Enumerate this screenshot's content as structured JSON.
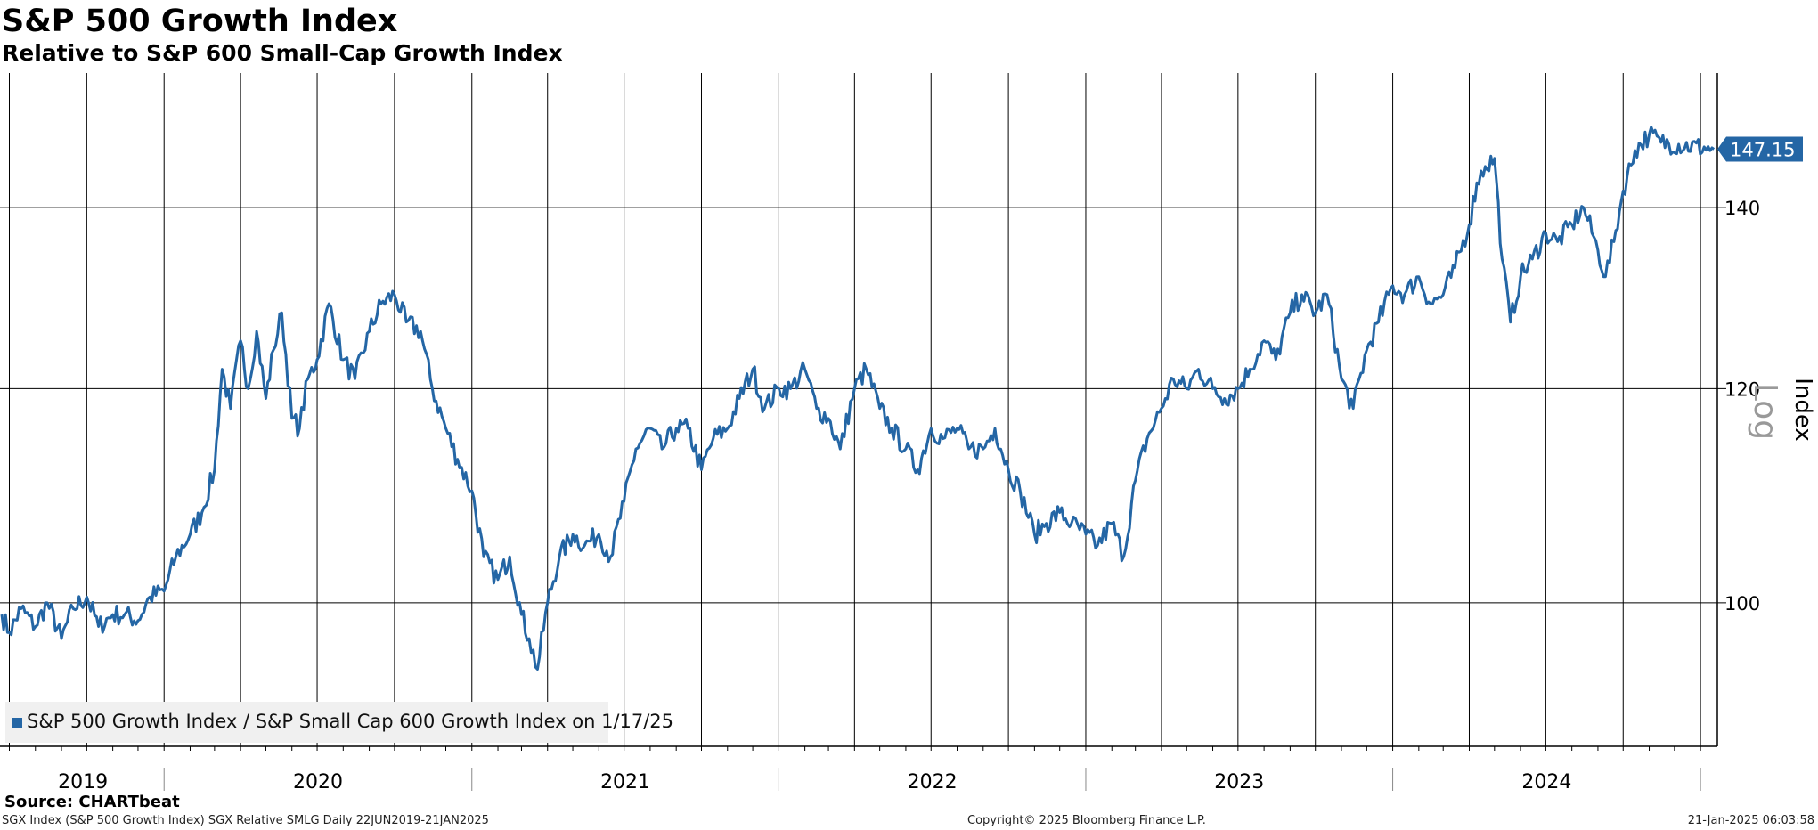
{
  "header": {
    "title": "S&P 500 Growth Index",
    "subtitle": "Relative to S&P 600 Small-Cap Growth Index"
  },
  "footer": {
    "source": "Source: CHARTbeat",
    "description": "SGX Index (S&P 500 Growth Index) SGX Relative SMLG  Daily 22JUN2019-21JAN2025",
    "copyright": "Copyright© 2025 Bloomberg Finance L.P.",
    "timestamp": "21-Jan-2025 06:03:58"
  },
  "colors": {
    "series": "#2466a5",
    "grid": "#000000",
    "legend_bg": "#f0f0f0",
    "scale_label": "#999999"
  },
  "chart_data": {
    "type": "line",
    "title": "S&P 500 Growth Index",
    "subtitle": "Relative to S&P 600 Small-Cap Growth Index",
    "ylabel": "Index",
    "scale_label": "Log",
    "y_scale": "log",
    "ylim": [
      88.5,
      157
    ],
    "xlim": [
      "2019-06-22",
      "2025-01-21"
    ],
    "y_ticks": [
      100,
      120,
      140
    ],
    "x_tick_labels": [
      "2019",
      "2020",
      "2021",
      "2022",
      "2023",
      "2024"
    ],
    "grid": true,
    "legend_position": "bottom-left",
    "last_value": 147.15,
    "last_value_label": "147.15",
    "series": [
      {
        "name": "S&P 500 Growth Index / S&P Small Cap 600 Growth Index on 1/17/25",
        "points": [
          [
            "2019-06-22",
            99
          ],
          [
            "2019-07-01",
            97.5
          ],
          [
            "2019-07-15",
            99.5
          ],
          [
            "2019-08-01",
            98
          ],
          [
            "2019-08-15",
            100
          ],
          [
            "2019-09-01",
            97
          ],
          [
            "2019-09-15",
            99.5
          ],
          [
            "2019-10-01",
            100.5
          ],
          [
            "2019-10-15",
            98
          ],
          [
            "2019-11-01",
            99
          ],
          [
            "2019-11-15",
            99
          ],
          [
            "2019-12-01",
            98.5
          ],
          [
            "2019-12-15",
            100.5
          ],
          [
            "2020-01-01",
            101
          ],
          [
            "2020-01-15",
            104
          ],
          [
            "2020-02-01",
            106
          ],
          [
            "2020-02-15",
            108
          ],
          [
            "2020-03-01",
            112
          ],
          [
            "2020-03-10",
            122
          ],
          [
            "2020-03-20",
            118
          ],
          [
            "2020-04-01",
            125
          ],
          [
            "2020-04-10",
            120
          ],
          [
            "2020-04-20",
            126
          ],
          [
            "2020-05-01",
            119
          ],
          [
            "2020-05-10",
            124
          ],
          [
            "2020-05-20",
            128
          ],
          [
            "2020-06-01",
            117
          ],
          [
            "2020-06-10",
            116
          ],
          [
            "2020-06-20",
            121
          ],
          [
            "2020-07-01",
            123
          ],
          [
            "2020-07-15",
            129
          ],
          [
            "2020-08-01",
            123
          ],
          [
            "2020-08-15",
            121
          ],
          [
            "2020-09-01",
            126
          ],
          [
            "2020-09-15",
            129
          ],
          [
            "2020-10-01",
            130
          ],
          [
            "2020-10-15",
            127
          ],
          [
            "2020-11-01",
            126
          ],
          [
            "2020-11-15",
            120
          ],
          [
            "2020-12-01",
            116
          ],
          [
            "2020-12-15",
            113
          ],
          [
            "2021-01-01",
            110
          ],
          [
            "2021-01-15",
            104
          ],
          [
            "2021-02-01",
            102
          ],
          [
            "2021-02-15",
            104
          ],
          [
            "2021-03-01",
            99
          ],
          [
            "2021-03-10",
            97
          ],
          [
            "2021-03-20",
            94.5
          ],
          [
            "2021-04-01",
            100
          ],
          [
            "2021-04-15",
            104
          ],
          [
            "2021-05-01",
            106
          ],
          [
            "2021-05-15",
            105
          ],
          [
            "2021-06-01",
            106
          ],
          [
            "2021-06-15",
            104
          ],
          [
            "2021-07-01",
            109
          ],
          [
            "2021-07-15",
            114
          ],
          [
            "2021-08-01",
            116
          ],
          [
            "2021-08-15",
            114
          ],
          [
            "2021-09-01",
            116
          ],
          [
            "2021-09-15",
            116
          ],
          [
            "2021-10-01",
            112
          ],
          [
            "2021-10-15",
            115
          ],
          [
            "2021-11-01",
            116
          ],
          [
            "2021-11-15",
            119
          ],
          [
            "2021-12-01",
            122
          ],
          [
            "2021-12-15",
            118
          ],
          [
            "2022-01-01",
            120
          ],
          [
            "2022-01-15",
            120
          ],
          [
            "2022-02-01",
            122
          ],
          [
            "2022-02-15",
            118
          ],
          [
            "2022-03-01",
            117
          ],
          [
            "2022-03-15",
            114
          ],
          [
            "2022-04-01",
            120
          ],
          [
            "2022-04-15",
            122
          ],
          [
            "2022-05-01",
            118
          ],
          [
            "2022-05-15",
            116
          ],
          [
            "2022-06-01",
            114
          ],
          [
            "2022-06-15",
            112
          ],
          [
            "2022-07-01",
            116
          ],
          [
            "2022-07-15",
            115
          ],
          [
            "2022-08-01",
            116
          ],
          [
            "2022-08-15",
            114
          ],
          [
            "2022-09-01",
            114
          ],
          [
            "2022-09-15",
            116
          ],
          [
            "2022-10-01",
            112
          ],
          [
            "2022-10-15",
            110
          ],
          [
            "2022-11-01",
            106
          ],
          [
            "2022-11-15",
            107
          ],
          [
            "2022-12-01",
            108
          ],
          [
            "2022-12-15",
            107
          ],
          [
            "2023-01-01",
            106
          ],
          [
            "2023-01-15",
            105
          ],
          [
            "2023-02-01",
            107
          ],
          [
            "2023-02-15",
            104
          ],
          [
            "2023-03-01",
            111
          ],
          [
            "2023-03-15",
            115
          ],
          [
            "2023-04-01",
            118
          ],
          [
            "2023-04-15",
            121
          ],
          [
            "2023-05-01",
            120
          ],
          [
            "2023-05-15",
            122
          ],
          [
            "2023-06-01",
            120
          ],
          [
            "2023-06-15",
            119
          ],
          [
            "2023-07-01",
            120
          ],
          [
            "2023-07-15",
            122
          ],
          [
            "2023-08-01",
            125
          ],
          [
            "2023-08-15",
            123
          ],
          [
            "2023-09-01",
            128
          ],
          [
            "2023-09-15",
            130
          ],
          [
            "2023-10-01",
            128
          ],
          [
            "2023-10-15",
            130
          ],
          [
            "2023-11-01",
            121
          ],
          [
            "2023-11-15",
            118
          ],
          [
            "2023-12-01",
            124
          ],
          [
            "2023-12-15",
            127
          ],
          [
            "2024-01-01",
            131
          ],
          [
            "2024-01-15",
            130
          ],
          [
            "2024-02-01",
            132
          ],
          [
            "2024-02-15",
            129
          ],
          [
            "2024-03-01",
            130
          ],
          [
            "2024-03-15",
            133
          ],
          [
            "2024-04-01",
            138
          ],
          [
            "2024-04-10",
            143
          ],
          [
            "2024-04-20",
            145
          ],
          [
            "2024-05-01",
            146
          ],
          [
            "2024-05-10",
            134
          ],
          [
            "2024-05-20",
            127
          ],
          [
            "2024-06-01",
            132
          ],
          [
            "2024-06-15",
            134
          ],
          [
            "2024-07-01",
            137
          ],
          [
            "2024-07-15",
            136
          ],
          [
            "2024-08-01",
            138
          ],
          [
            "2024-08-15",
            140
          ],
          [
            "2024-09-01",
            135
          ],
          [
            "2024-09-10",
            132
          ],
          [
            "2024-09-20",
            136
          ],
          [
            "2024-10-01",
            142
          ],
          [
            "2024-10-15",
            147
          ],
          [
            "2024-11-01",
            149
          ],
          [
            "2024-11-15",
            148
          ],
          [
            "2025-01-17",
            147.15
          ]
        ]
      }
    ]
  }
}
